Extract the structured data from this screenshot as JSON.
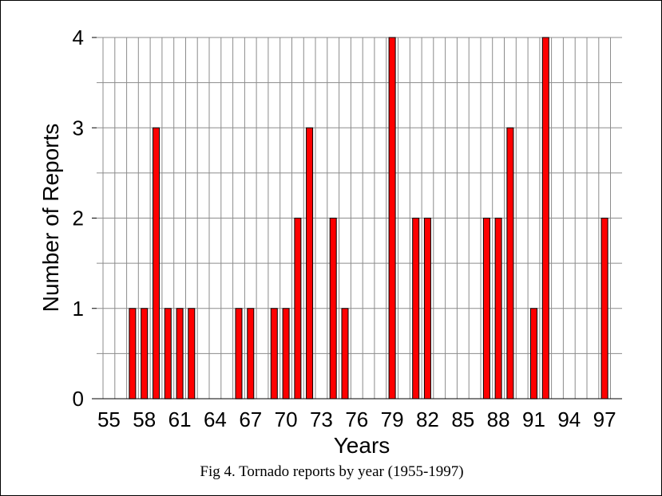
{
  "caption": "Fig 4. Tornado reports by year (1955-1997)",
  "chart_data": {
    "type": "bar",
    "title": "",
    "xlabel": "Years",
    "ylabel": "Number of Reports",
    "ylim": [
      0,
      4
    ],
    "yticks": [
      "0",
      "1",
      "2",
      "3",
      "4"
    ],
    "xtick_labels": [
      "55",
      "58",
      "61",
      "64",
      "67",
      "70",
      "73",
      "76",
      "79",
      "82",
      "85",
      "88",
      "91",
      "94",
      "97"
    ],
    "categories": [
      "55",
      "56",
      "57",
      "58",
      "59",
      "60",
      "61",
      "62",
      "63",
      "64",
      "65",
      "66",
      "67",
      "68",
      "69",
      "70",
      "71",
      "72",
      "73",
      "74",
      "75",
      "76",
      "77",
      "78",
      "79",
      "80",
      "81",
      "82",
      "83",
      "84",
      "85",
      "86",
      "87",
      "88",
      "89",
      "90",
      "91",
      "92",
      "93",
      "94",
      "95",
      "96",
      "97"
    ],
    "values": [
      0,
      0,
      1,
      1,
      3,
      1,
      1,
      1,
      0,
      0,
      0,
      1,
      1,
      0,
      1,
      1,
      2,
      3,
      0,
      2,
      1,
      0,
      0,
      0,
      4,
      0,
      2,
      2,
      0,
      0,
      0,
      0,
      2,
      2,
      3,
      0,
      1,
      4,
      0,
      0,
      0,
      0,
      2
    ],
    "bar_color": "#ff0000",
    "grid": true,
    "legend": "none"
  }
}
